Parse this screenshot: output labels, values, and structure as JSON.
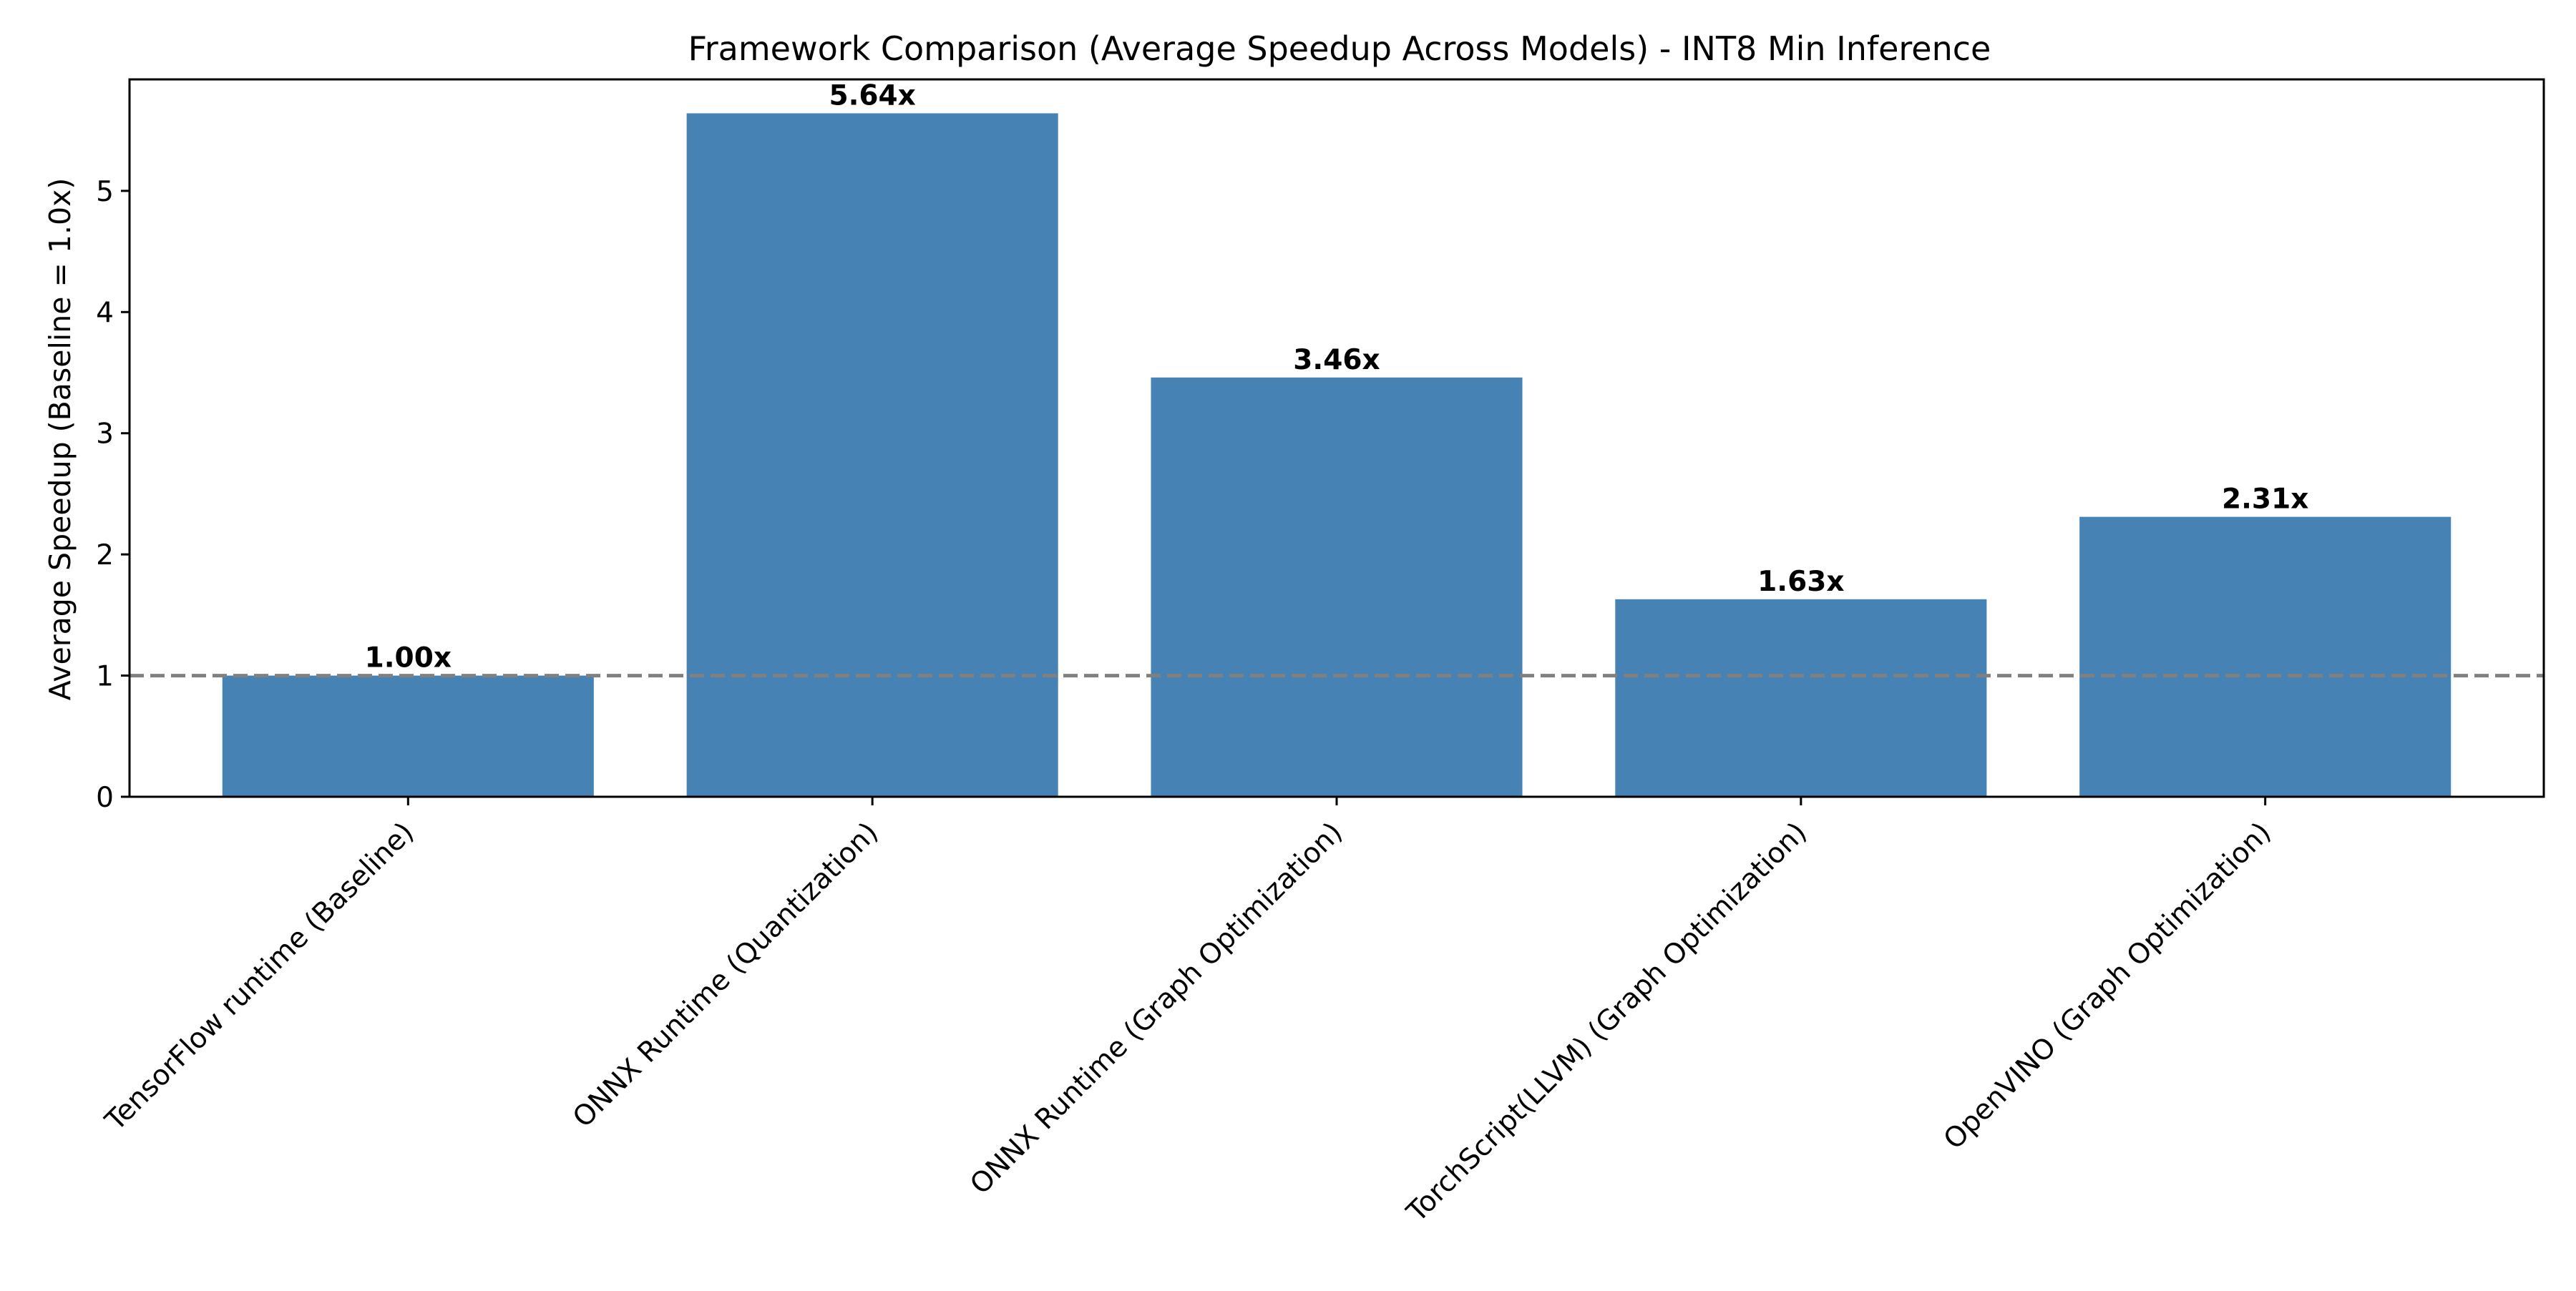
{
  "chart_data": {
    "type": "bar",
    "title": "Framework Comparison (Average Speedup Across Models) - INT8 Min Inference",
    "xlabel": "",
    "ylabel": "Average Speedup (Baseline = 1.0x)",
    "categories": [
      "TensorFlow runtime (Baseline)",
      "ONNX Runtime (Quantization)",
      "ONNX Runtime (Graph Optimization)",
      "TorchScript(LLVM) (Graph Optimization)",
      "OpenVINO (Graph Optimization)"
    ],
    "values": [
      1.0,
      5.64,
      3.46,
      1.63,
      2.31
    ],
    "data_labels": [
      "1.00x",
      "5.64x",
      "3.46x",
      "1.63x",
      "2.31x"
    ],
    "ylim": [
      0,
      5.92
    ],
    "yticks": [
      0,
      1,
      2,
      3,
      4,
      5
    ],
    "baseline": 1.0,
    "grid": false,
    "colors": {
      "bar": "#4682b4",
      "baseline_line": "#808080",
      "axis": "#000000",
      "background": "#ffffff"
    }
  }
}
